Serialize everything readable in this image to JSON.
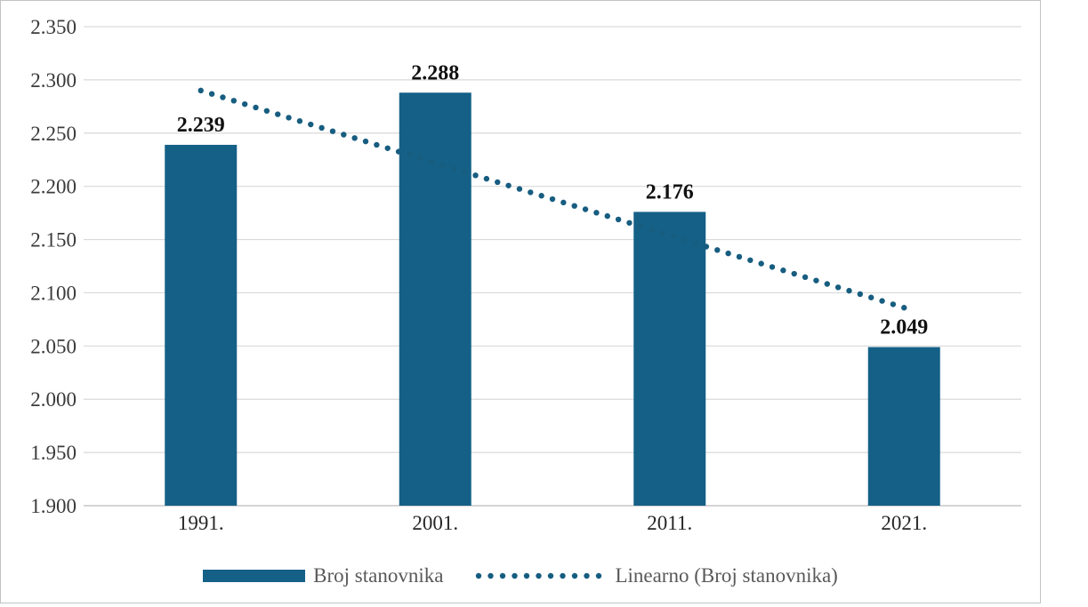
{
  "chart_data": {
    "type": "bar",
    "title": "",
    "xlabel": "",
    "ylabel": "",
    "categories": [
      "1991.",
      "2001.",
      "2011.",
      "2021."
    ],
    "series": [
      {
        "name": "Broj stanovnika",
        "values": [
          2239,
          2288,
          2176,
          2049
        ],
        "value_labels": [
          "2.239",
          "2.288",
          "2.176",
          "2.049"
        ]
      }
    ],
    "trendline": {
      "name": "Linearno (Broj stanovnika)",
      "style": "dotted",
      "start_value": 2290,
      "end_value": 2086
    },
    "y_axis": {
      "min": 1900,
      "max": 2350,
      "step": 50,
      "tick_labels": [
        "1.900",
        "1.950",
        "2.000",
        "2.050",
        "2.100",
        "2.150",
        "2.200",
        "2.250",
        "2.300",
        "2.350"
      ]
    },
    "grid": true,
    "legend_position": "bottom",
    "colors": {
      "bar": "#156087",
      "trend": "#175d80",
      "gridline": "#d9d9d9",
      "axis_line": "#c6c6c6",
      "tick_text": "#3a3a3a",
      "category_text": "#262626",
      "value_label_text": "#111111",
      "legend_text": "#595959",
      "border": "#c3c3c3"
    }
  }
}
